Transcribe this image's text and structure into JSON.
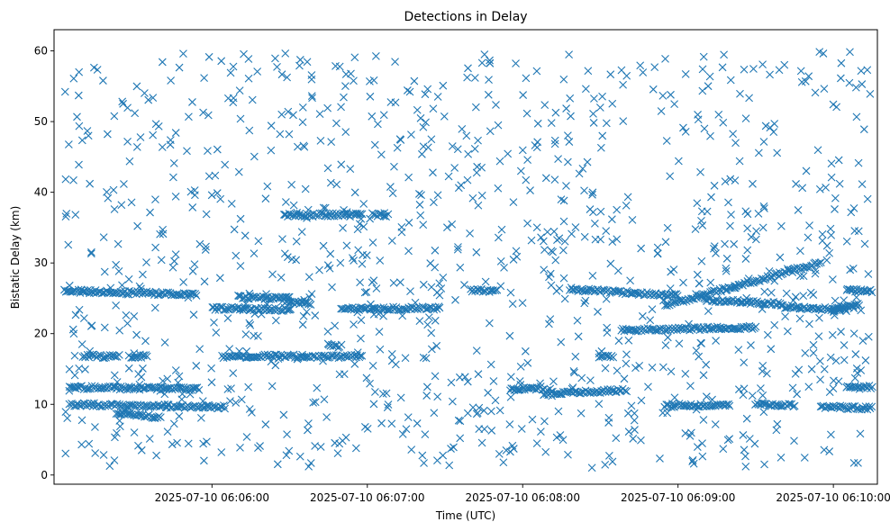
{
  "chart_data": {
    "type": "scatter",
    "title": "Detections in Delay",
    "xlabel": "Time (UTC)",
    "ylabel": "Bistatic Delay (km)",
    "marker": "x",
    "color": "#1f77b4",
    "grid": false,
    "legend": "none",
    "xlim": [
      "2025-07-10 06:04:59",
      "2025-07-10 06:10:17"
    ],
    "ylim": [
      -1.3,
      63
    ],
    "x_ticks": [
      "2025-07-10 06:06:00",
      "2025-07-10 06:07:00",
      "2025-07-10 06:08:00",
      "2025-07-10 06:09:00",
      "2025-07-10 06:10:00"
    ],
    "y_ticks": [
      0,
      10,
      20,
      30,
      40,
      50,
      60
    ],
    "tracks": [
      {
        "t0": "2025-07-10 06:05:03",
        "t1": "2025-07-10 06:05:54",
        "y0": 26.0,
        "y1": 25.6
      },
      {
        "t0": "2025-07-10 06:05:05",
        "t1": "2025-07-10 06:05:55",
        "y0": 12.4,
        "y1": 12.2
      },
      {
        "t0": "2025-07-10 06:05:05",
        "t1": "2025-07-10 06:06:05",
        "y0": 10.0,
        "y1": 9.6
      },
      {
        "t0": "2025-07-10 06:05:10",
        "t1": "2025-07-10 06:05:24",
        "y0": 16.8,
        "y1": 16.8
      },
      {
        "t0": "2025-07-10 06:05:23",
        "t1": "2025-07-10 06:05:40",
        "y0": 8.8,
        "y1": 8.2
      },
      {
        "t0": "2025-07-10 06:05:28",
        "t1": "2025-07-10 06:05:35",
        "y0": 16.8,
        "y1": 16.8
      },
      {
        "t0": "2025-07-10 06:06:00",
        "t1": "2025-07-10 06:06:30",
        "y0": 23.6,
        "y1": 23.4
      },
      {
        "t0": "2025-07-10 06:06:04",
        "t1": "2025-07-10 06:06:58",
        "y0": 16.8,
        "y1": 16.8
      },
      {
        "t0": "2025-07-10 06:06:10",
        "t1": "2025-07-10 06:06:30",
        "y0": 25.2,
        "y1": 25.0
      },
      {
        "t0": "2025-07-10 06:06:28",
        "t1": "2025-07-10 06:06:58",
        "y0": 36.8,
        "y1": 36.8
      },
      {
        "t0": "2025-07-10 06:06:28",
        "t1": "2025-07-10 06:06:38",
        "y0": 24.5,
        "y1": 24.3
      },
      {
        "t0": "2025-07-10 06:06:45",
        "t1": "2025-07-10 06:06:50",
        "y0": 18.2,
        "y1": 18.2
      },
      {
        "t0": "2025-07-10 06:06:50",
        "t1": "2025-07-10 06:07:28",
        "y0": 23.5,
        "y1": 23.6
      },
      {
        "t0": "2025-07-10 06:07:02",
        "t1": "2025-07-10 06:07:08",
        "y0": 36.8,
        "y1": 36.7
      },
      {
        "t0": "2025-07-10 06:07:40",
        "t1": "2025-07-10 06:07:50",
        "y0": 26.1,
        "y1": 26.0
      },
      {
        "t0": "2025-07-10 06:07:55",
        "t1": "2025-07-10 06:08:08",
        "y0": 12.2,
        "y1": 12.3
      },
      {
        "t0": "2025-07-10 06:08:08",
        "t1": "2025-07-10 06:08:40",
        "y0": 11.5,
        "y1": 12.0
      },
      {
        "t0": "2025-07-10 06:08:18",
        "t1": "2025-07-10 06:09:00",
        "y0": 26.3,
        "y1": 25.4
      },
      {
        "t0": "2025-07-10 06:08:38",
        "t1": "2025-07-10 06:09:30",
        "y0": 20.5,
        "y1": 20.9
      },
      {
        "t0": "2025-07-10 06:08:55",
        "t1": "2025-07-10 06:09:55",
        "y0": 24.0,
        "y1": 30.0
      },
      {
        "t0": "2025-07-10 06:08:55",
        "t1": "2025-07-10 06:09:20",
        "y0": 9.8,
        "y1": 10.0
      },
      {
        "t0": "2025-07-10 06:09:10",
        "t1": "2025-07-10 06:09:40",
        "y0": 24.8,
        "y1": 24.2
      },
      {
        "t0": "2025-07-10 06:09:30",
        "t1": "2025-07-10 06:09:45",
        "y0": 10.0,
        "y1": 9.8
      },
      {
        "t0": "2025-07-10 06:09:40",
        "t1": "2025-07-10 06:10:05",
        "y0": 23.8,
        "y1": 23.4
      },
      {
        "t0": "2025-07-10 06:10:00",
        "t1": "2025-07-10 06:10:10",
        "y0": 23.4,
        "y1": 24.2
      },
      {
        "t0": "2025-07-10 06:10:05",
        "t1": "2025-07-10 06:10:15",
        "y0": 26.2,
        "y1": 26.0
      },
      {
        "t0": "2025-07-10 06:09:55",
        "t1": "2025-07-10 06:10:15",
        "y0": 9.6,
        "y1": 9.5
      },
      {
        "t0": "2025-07-10 06:10:05",
        "t1": "2025-07-10 06:10:15",
        "y0": 12.4,
        "y1": 12.4
      },
      {
        "t0": "2025-07-10 06:08:30",
        "t1": "2025-07-10 06:08:35",
        "y0": 16.8,
        "y1": 16.8
      }
    ]
  }
}
